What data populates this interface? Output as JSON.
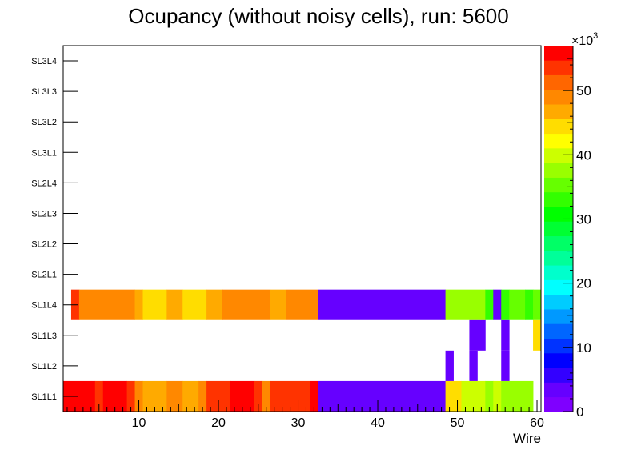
{
  "chart_data": {
    "type": "heatmap",
    "title": "Ocupancy (without noisy cells), run: 5600",
    "xlabel": "Wire",
    "ylabel": "",
    "x_range": [
      0.5,
      60.5
    ],
    "x_ticks": [
      10,
      20,
      30,
      40,
      50,
      60
    ],
    "y_categories": [
      "SL1L1",
      "SL1L2",
      "SL1L3",
      "SL1L4",
      "SL2L1",
      "SL2L2",
      "SL2L3",
      "SL2L4",
      "SL3L1",
      "SL3L2",
      "SL3L3",
      "SL3L4"
    ],
    "z_range": [
      0,
      57
    ],
    "z_ticks": [
      0,
      10,
      20,
      30,
      40,
      50
    ],
    "z_exponent_label": "×10",
    "z_exponent_power": "3",
    "palette": [
      "#7f00ff",
      "#6600ff",
      "#3300ff",
      "#0000ff",
      "#0033ff",
      "#0066ff",
      "#0099ff",
      "#00ccff",
      "#00ffff",
      "#00ffcc",
      "#00ff99",
      "#00ff66",
      "#00ff33",
      "#00ff00",
      "#33ff00",
      "#66ff00",
      "#99ff00",
      "#ccff00",
      "#ffff00",
      "#ffdd00",
      "#ffaa00",
      "#ff8800",
      "#ff6600",
      "#ff3300",
      "#ff0000"
    ],
    "series": [
      {
        "name": "SL1L1",
        "ranges": [
          [
            1,
            4,
            56
          ],
          [
            5,
            5,
            53
          ],
          [
            6,
            8,
            56
          ],
          [
            9,
            9,
            53
          ],
          [
            10,
            10,
            50
          ],
          [
            11,
            13,
            47
          ],
          [
            14,
            15,
            50
          ],
          [
            16,
            17,
            47
          ],
          [
            18,
            18,
            50
          ],
          [
            19,
            21,
            53
          ],
          [
            22,
            24,
            56
          ],
          [
            25,
            25,
            53
          ],
          [
            26,
            26,
            50
          ],
          [
            27,
            31,
            53
          ],
          [
            32,
            32,
            56
          ],
          [
            33,
            48,
            3
          ],
          [
            49,
            50,
            44
          ],
          [
            51,
            53,
            41
          ],
          [
            54,
            54,
            38
          ],
          [
            55,
            55,
            41
          ],
          [
            56,
            59,
            38
          ]
        ]
      },
      {
        "name": "SL1L2",
        "ranges": [
          [
            49,
            49,
            3
          ],
          [
            52,
            52,
            3
          ],
          [
            56,
            56,
            3
          ]
        ]
      },
      {
        "name": "SL1L3",
        "ranges": [
          [
            52,
            53,
            3
          ],
          [
            56,
            56,
            3
          ],
          [
            60,
            60,
            44
          ]
        ]
      },
      {
        "name": "SL1L4",
        "ranges": [
          [
            2,
            2,
            53
          ],
          [
            3,
            9,
            50
          ],
          [
            10,
            10,
            47
          ],
          [
            11,
            13,
            44
          ],
          [
            14,
            15,
            47
          ],
          [
            16,
            18,
            44
          ],
          [
            19,
            20,
            47
          ],
          [
            21,
            26,
            50
          ],
          [
            27,
            28,
            47
          ],
          [
            29,
            32,
            50
          ],
          [
            33,
            48,
            3
          ],
          [
            49,
            53,
            38
          ],
          [
            54,
            54,
            32
          ],
          [
            55,
            55,
            3
          ],
          [
            56,
            56,
            32
          ],
          [
            57,
            58,
            35
          ],
          [
            59,
            59,
            32
          ],
          [
            60,
            60,
            35
          ]
        ]
      }
    ]
  }
}
